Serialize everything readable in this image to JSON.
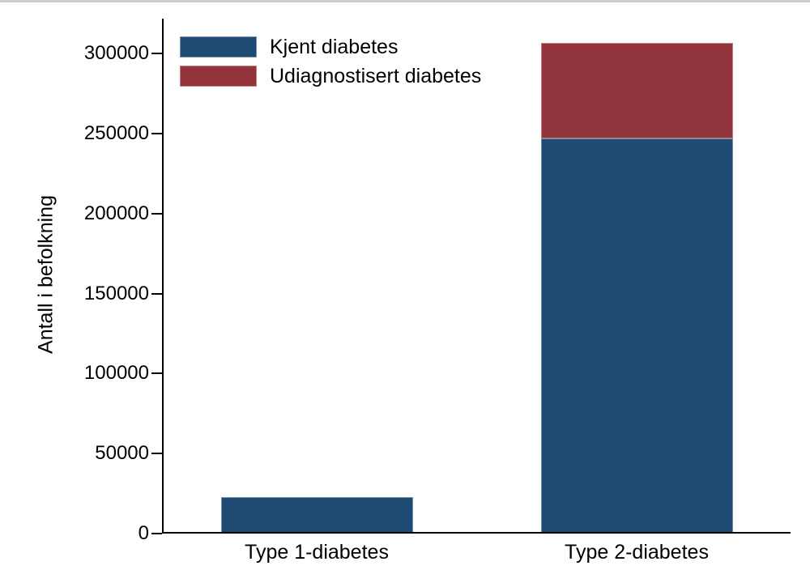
{
  "page": {
    "background_color": "#ffffff",
    "top_rule_color": "#cbcbcb",
    "axis_color": "#000000",
    "text_color": "#000000"
  },
  "chart_data": {
    "type": "bar",
    "stacked": true,
    "title": "",
    "xlabel": "",
    "ylabel": "Antall i befolkning",
    "categories": [
      "Type 1-diabetes",
      "Type 2-diabetes"
    ],
    "series": [
      {
        "name": "Kjent diabetes",
        "color": "#1E4A73",
        "values": [
          23000,
          247000
        ]
      },
      {
        "name": "Udiagnostisert diabetes",
        "color": "#92343C",
        "values": [
          0,
          60000
        ]
      }
    ],
    "totals": [
      23000,
      307000
    ],
    "ylim": [
      0,
      322000
    ],
    "yticks": [
      0,
      50000,
      100000,
      150000,
      200000,
      250000,
      300000
    ],
    "ytick_labels": [
      "0",
      "50000",
      "100000",
      "150000",
      "200000",
      "250000",
      "300000"
    ],
    "grid": false,
    "legend_position": "top-left",
    "legend_entries": [
      "Kjent diabetes",
      "Udiagnostisert diabetes"
    ]
  }
}
